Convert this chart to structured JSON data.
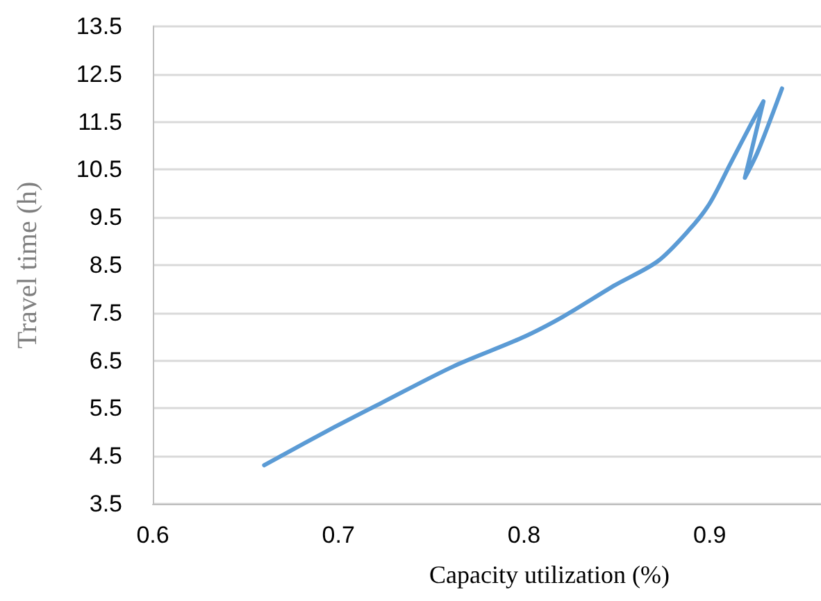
{
  "chart_data": {
    "type": "line",
    "xlabel": "Capacity utilization (%)",
    "ylabel": "Travel time (h)",
    "x": [
      0.66,
      0.698,
      0.723,
      0.762,
      0.799,
      0.821,
      0.849,
      0.872,
      0.889,
      0.9,
      0.911,
      0.922,
      0.929,
      0.919,
      0.926,
      0.939
    ],
    "series": [
      {
        "color": "#5b9bd5",
        "values": [
          4.31,
          5.11,
          5.61,
          6.38,
          6.98,
          7.42,
          8.08,
          8.58,
          9.24,
          9.79,
          10.61,
          11.43,
          11.93,
          10.33,
          10.88,
          12.2
        ]
      }
    ],
    "xlim": [
      0.6,
      0.96
    ],
    "xticks": [
      0.6,
      0.7,
      0.8,
      0.9
    ],
    "ylim": [
      3.5,
      13.5
    ],
    "yticks": [
      3.5,
      4.5,
      5.5,
      6.5,
      7.5,
      8.5,
      9.5,
      10.5,
      11.5,
      12.5,
      13.5
    ],
    "grid": "y",
    "marker": "none",
    "line_style": "solid"
  }
}
